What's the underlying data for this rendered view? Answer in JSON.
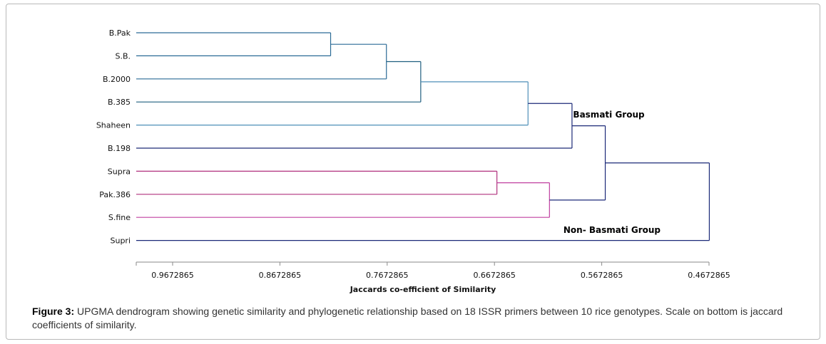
{
  "chart_data": {
    "type": "dendrogram",
    "xlabel": "Jaccards co-efficient of  Similarity",
    "x_ticks": [
      "0.9672865",
      "0.8672865",
      "0.7672865",
      "0.6672865",
      "0.5672865",
      "0.4672865"
    ],
    "xlim": [
      1.0,
      0.4672865
    ],
    "leaves": [
      "B.Pak",
      "S.B.",
      "B.2000",
      "B.385",
      "Shaheen",
      "B.198",
      "Supra",
      "Pak.386",
      "S.fine",
      "Supri"
    ],
    "merges": [
      {
        "id": "m1",
        "children": [
          "B.Pak",
          "S.B."
        ],
        "similarity": 0.82,
        "color": "#2a6a96"
      },
      {
        "id": "m2",
        "children": [
          "m1",
          "B.2000"
        ],
        "similarity": 0.768,
        "color": "#2a6a96"
      },
      {
        "id": "m3",
        "children": [
          "m2",
          "B.385"
        ],
        "similarity": 0.736,
        "color": "#1f5f7f"
      },
      {
        "id": "m4",
        "children": [
          "m3",
          "Shaheen"
        ],
        "similarity": 0.636,
        "color": "#4f8fb8"
      },
      {
        "id": "m5",
        "children": [
          "m4",
          "B.198"
        ],
        "similarity": 0.595,
        "color": "#1c2a78"
      },
      {
        "id": "m6",
        "children": [
          "Supra",
          "Pak.386"
        ],
        "similarity": 0.665,
        "color": "#b0307e"
      },
      {
        "id": "m7",
        "children": [
          "m6",
          "S.fine"
        ],
        "similarity": 0.616,
        "color": "#c040a0"
      },
      {
        "id": "m8",
        "children": [
          "m5",
          "m7"
        ],
        "similarity": 0.564,
        "color": "#1c2a78"
      },
      {
        "id": "m9",
        "children": [
          "m8",
          "Supri"
        ],
        "similarity": 0.467,
        "color": "#1c2a78"
      }
    ],
    "annotations": [
      {
        "text": "Basmati Group",
        "x": 0.594,
        "after_leaf": "B.385"
      },
      {
        "text": "Non- Basmati Group",
        "x": 0.603,
        "after_leaf": "S.fine"
      }
    ]
  },
  "caption": {
    "label": "Figure 3:",
    "text": " UPGMA dendrogram showing genetic similarity and phylogenetic relationship based on 18 ISSR primers between 10 rice genotypes. Scale on bottom is jaccard coefficients of similarity."
  }
}
